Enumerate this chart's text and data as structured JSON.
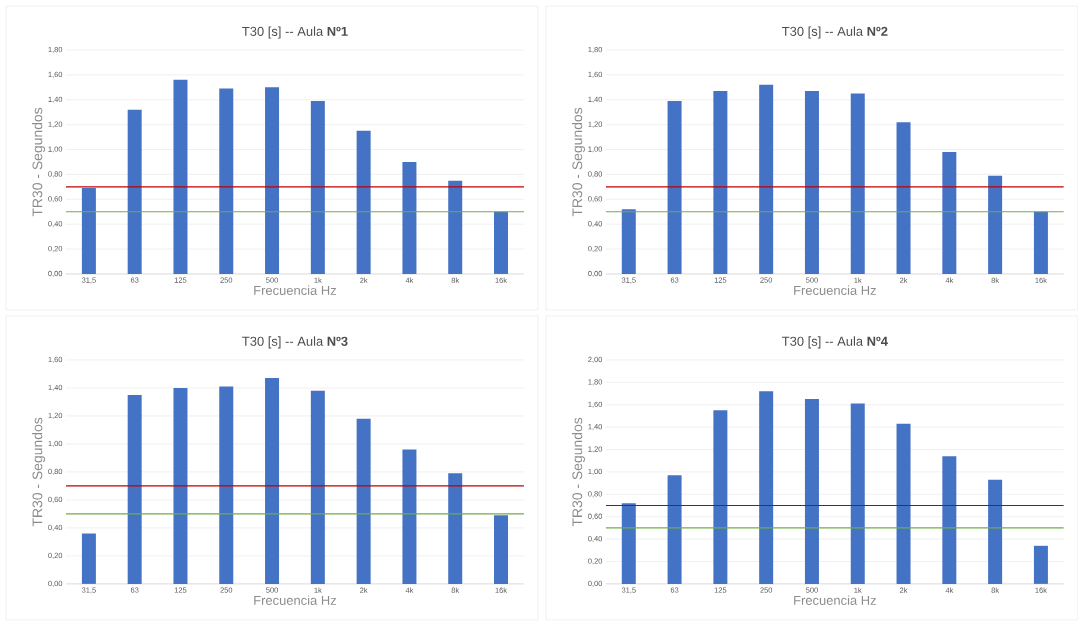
{
  "chart_data": [
    {
      "type": "bar",
      "title": "T30 [s] -- Aula **Nº1**",
      "xlabel": "Frecuencia Hz",
      "ylabel": "TR30 - Segundos",
      "categories": [
        "31,5",
        "63",
        "125",
        "250",
        "500",
        "1k",
        "2k",
        "4k",
        "8k",
        "16k"
      ],
      "values": [
        0.69,
        1.32,
        1.56,
        1.49,
        1.5,
        1.39,
        1.15,
        0.9,
        0.75,
        0.5
      ],
      "color": "#4472c4",
      "ylim": [
        0,
        1.8
      ],
      "yticks": [
        {
          "value": 0,
          "label": "0,00"
        },
        {
          "value": 0.2,
          "label": "0,20"
        },
        {
          "value": 0.4,
          "label": "0,40"
        },
        {
          "value": 0.6,
          "label": "0,60"
        },
        {
          "value": 0.8,
          "label": "0,80"
        },
        {
          "value": 1.0,
          "label": "1,00"
        },
        {
          "value": 1.2,
          "label": "1,20"
        },
        {
          "value": 1.4,
          "label": "1,40"
        },
        {
          "value": 1.6,
          "label": "1,60"
        },
        {
          "value": 1.8,
          "label": "1,80"
        }
      ],
      "grid": "y",
      "ref_lines": [
        {
          "axis": "y",
          "value": 0.7,
          "color": "#c00000"
        },
        {
          "axis": "y",
          "value": 0.5,
          "color": "#70ad47"
        }
      ]
    },
    {
      "type": "bar",
      "title": "T30 [s] -- Aula **Nº2**",
      "xlabel": "Frecuencia Hz",
      "ylabel": "TR30 - Segundos",
      "categories": [
        "31,5",
        "63",
        "125",
        "250",
        "500",
        "1k",
        "2k",
        "4k",
        "8k",
        "16k"
      ],
      "values": [
        0.52,
        1.39,
        1.47,
        1.52,
        1.47,
        1.45,
        1.22,
        0.98,
        0.79,
        0.5
      ],
      "color": "#4472c4",
      "ylim": [
        0,
        1.8
      ],
      "yticks": [
        {
          "value": 0,
          "label": "0,00"
        },
        {
          "value": 0.2,
          "label": "0,20"
        },
        {
          "value": 0.4,
          "label": "0,40"
        },
        {
          "value": 0.6,
          "label": "0,60"
        },
        {
          "value": 0.8,
          "label": "0,80"
        },
        {
          "value": 1.0,
          "label": "1,00"
        },
        {
          "value": 1.2,
          "label": "1,20"
        },
        {
          "value": 1.4,
          "label": "1,40"
        },
        {
          "value": 1.6,
          "label": "1,60"
        },
        {
          "value": 1.8,
          "label": "1,80"
        }
      ],
      "grid": "y",
      "ref_lines": [
        {
          "axis": "y",
          "value": 0.7,
          "color": "#c00000"
        },
        {
          "axis": "y",
          "value": 0.5,
          "color": "#70ad47"
        }
      ]
    },
    {
      "type": "bar",
      "title": "T30 [s] -- Aula **Nº3**",
      "xlabel": "Frecuencia Hz",
      "ylabel": "TR30 - Segundos",
      "categories": [
        "31,5",
        "63",
        "125",
        "250",
        "500",
        "1k",
        "2k",
        "4k",
        "8k",
        "16k"
      ],
      "values": [
        0.36,
        1.35,
        1.4,
        1.41,
        1.47,
        1.38,
        1.18,
        0.96,
        0.79,
        0.49
      ],
      "color": "#4472c4",
      "ylim": [
        0,
        1.6
      ],
      "yticks": [
        {
          "value": 0,
          "label": "0,00"
        },
        {
          "value": 0.2,
          "label": "0,20"
        },
        {
          "value": 0.4,
          "label": "0,40"
        },
        {
          "value": 0.6,
          "label": "0,60"
        },
        {
          "value": 0.8,
          "label": "0,80"
        },
        {
          "value": 1.0,
          "label": "1,00"
        },
        {
          "value": 1.2,
          "label": "1,20"
        },
        {
          "value": 1.4,
          "label": "1,40"
        },
        {
          "value": 1.6,
          "label": "1,60"
        }
      ],
      "grid": "y",
      "ref_lines": [
        {
          "axis": "y",
          "value": 0.7,
          "color": "#c00000"
        },
        {
          "axis": "y",
          "value": 0.5,
          "color": "#70ad47"
        }
      ]
    },
    {
      "type": "bar",
      "title": "T30 [s] -- Aula **Nº4**",
      "xlabel": "Frecuencia Hz",
      "ylabel": "TR30 - Segundos",
      "categories": [
        "31,5",
        "63",
        "125",
        "250",
        "500",
        "1k",
        "2k",
        "4k",
        "8k",
        "16k"
      ],
      "values": [
        0.72,
        0.97,
        1.55,
        1.72,
        1.65,
        1.61,
        1.43,
        1.14,
        0.93,
        0.34
      ],
      "color": "#4472c4",
      "ylim": [
        0,
        2.0
      ],
      "yticks": [
        {
          "value": 0,
          "label": "0,00"
        },
        {
          "value": 0.2,
          "label": "0,20"
        },
        {
          "value": 0.4,
          "label": "0,40"
        },
        {
          "value": 0.6,
          "label": "0,60"
        },
        {
          "value": 0.8,
          "label": "0,80"
        },
        {
          "value": 1.0,
          "label": "1,00"
        },
        {
          "value": 1.2,
          "label": "1,20"
        },
        {
          "value": 1.4,
          "label": "1,40"
        },
        {
          "value": 1.6,
          "label": "1,60"
        },
        {
          "value": 1.8,
          "label": "1,80"
        },
        {
          "value": 2.0,
          "label": "2,00"
        }
      ],
      "grid": "y",
      "ref_lines": [
        {
          "axis": "y",
          "value": 0.7,
          "color": "#c00000"
        },
        {
          "axis": "y",
          "value": 0.5,
          "color": "#70ad47"
        }
      ]
    }
  ]
}
